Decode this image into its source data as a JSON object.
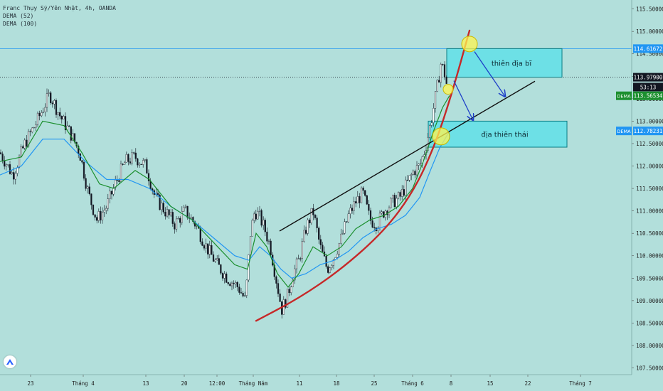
{
  "header": {
    "symbol_line": "Franc Thụy Sỹ/Yên Nhật, 4h, OANDA",
    "dema1": "DEMA (52)",
    "dema2": "DEMA (100)"
  },
  "chart_data": {
    "type": "candlestick",
    "ylim": [
      107.35,
      115.7
    ],
    "y_ticks": [
      "115.50000",
      "115.00000",
      "114.50000",
      "114.00000",
      "113.50000",
      "113.00000",
      "112.50000",
      "112.00000",
      "111.50000",
      "111.00000",
      "110.50000",
      "110.00000",
      "109.50000",
      "109.00000",
      "108.50000",
      "108.00000",
      "107.50000"
    ],
    "x_ticks": [
      "23",
      "Tháng 4",
      "13",
      "20",
      "12:00",
      "Tháng Năm",
      "11",
      "18",
      "25",
      "Tháng 6",
      "8",
      "15",
      "22",
      "Tháng 7"
    ],
    "price_labels": [
      {
        "text": "114.61672",
        "value": 114.61672,
        "color": "#2196f3"
      },
      {
        "text": "113.97900",
        "value": 113.979,
        "color": "#131722"
      },
      {
        "text": "53:13",
        "value": 113.76,
        "color": "#131722"
      },
      {
        "text": "113.56534",
        "value": 113.56534,
        "color": "#1b8f2e",
        "tag": "DEMA"
      },
      {
        "text": "112.78231",
        "value": 112.78231,
        "color": "#2196f3",
        "tag": "DEMA"
      }
    ],
    "hlines": [
      {
        "value": 114.61672,
        "color": "#2196f3",
        "style": "solid"
      },
      {
        "value": 113.979,
        "color": "#131722",
        "style": "dotted"
      }
    ],
    "candle_path": [
      [
        0,
        112.3
      ],
      [
        18,
        111.8
      ],
      [
        35,
        112.5
      ],
      [
        52,
        113.0
      ],
      [
        70,
        113.6
      ],
      [
        85,
        113.1
      ],
      [
        100,
        112.7
      ],
      [
        112,
        112.3
      ],
      [
        124,
        111.4
      ],
      [
        136,
        110.8
      ],
      [
        150,
        111.1
      ],
      [
        162,
        111.6
      ],
      [
        176,
        112.1
      ],
      [
        190,
        112.2
      ],
      [
        205,
        112.0
      ],
      [
        218,
        111.3
      ],
      [
        232,
        111.0
      ],
      [
        246,
        110.7
      ],
      [
        260,
        111.0
      ],
      [
        275,
        110.7
      ],
      [
        290,
        110.2
      ],
      [
        305,
        109.8
      ],
      [
        320,
        109.5
      ],
      [
        335,
        109.3
      ],
      [
        345,
        109.0
      ],
      [
        352,
        110.5
      ],
      [
        358,
        111.0
      ],
      [
        364,
        110.9
      ],
      [
        372,
        110.6
      ],
      [
        380,
        110.2
      ],
      [
        388,
        109.5
      ],
      [
        396,
        108.8
      ],
      [
        404,
        109.1
      ],
      [
        412,
        109.6
      ],
      [
        420,
        109.9
      ],
      [
        430,
        110.6
      ],
      [
        440,
        111.0
      ],
      [
        450,
        110.2
      ],
      [
        460,
        109.7
      ],
      [
        470,
        110.0
      ],
      [
        480,
        110.4
      ],
      [
        490,
        110.9
      ],
      [
        500,
        111.2
      ],
      [
        510,
        111.4
      ],
      [
        520,
        110.8
      ],
      [
        530,
        110.7
      ],
      [
        540,
        111.0
      ],
      [
        552,
        111.2
      ],
      [
        562,
        111.3
      ],
      [
        572,
        111.6
      ],
      [
        582,
        111.9
      ],
      [
        590,
        112.0
      ],
      [
        598,
        112.4
      ],
      [
        606,
        113.0
      ],
      [
        614,
        113.7
      ],
      [
        620,
        114.3
      ],
      [
        626,
        114.0
      ],
      [
        630,
        113.6
      ]
    ],
    "dema52": [
      [
        0,
        112.1
      ],
      [
        30,
        112.2
      ],
      [
        60,
        113.0
      ],
      [
        90,
        112.9
      ],
      [
        115,
        112.3
      ],
      [
        140,
        111.6
      ],
      [
        160,
        111.5
      ],
      [
        190,
        111.9
      ],
      [
        210,
        111.7
      ],
      [
        240,
        111.1
      ],
      [
        270,
        110.8
      ],
      [
        300,
        110.3
      ],
      [
        330,
        109.8
      ],
      [
        348,
        109.7
      ],
      [
        360,
        110.5
      ],
      [
        375,
        110.2
      ],
      [
        390,
        109.6
      ],
      [
        405,
        109.3
      ],
      [
        420,
        109.6
      ],
      [
        440,
        110.2
      ],
      [
        460,
        110.0
      ],
      [
        480,
        110.2
      ],
      [
        500,
        110.6
      ],
      [
        520,
        110.8
      ],
      [
        540,
        110.9
      ],
      [
        560,
        111.1
      ],
      [
        580,
        111.5
      ],
      [
        595,
        112.1
      ],
      [
        610,
        112.8
      ],
      [
        622,
        113.3
      ],
      [
        632,
        113.57
      ]
    ],
    "dema100": [
      [
        0,
        111.8
      ],
      [
        30,
        112.0
      ],
      [
        60,
        112.6
      ],
      [
        90,
        112.6
      ],
      [
        120,
        112.1
      ],
      [
        150,
        111.7
      ],
      [
        180,
        111.7
      ],
      [
        210,
        111.5
      ],
      [
        240,
        111.1
      ],
      [
        270,
        110.8
      ],
      [
        300,
        110.4
      ],
      [
        330,
        110.0
      ],
      [
        350,
        109.9
      ],
      [
        365,
        110.2
      ],
      [
        380,
        110.0
      ],
      [
        395,
        109.7
      ],
      [
        410,
        109.5
      ],
      [
        430,
        109.6
      ],
      [
        450,
        109.8
      ],
      [
        470,
        109.9
      ],
      [
        490,
        110.1
      ],
      [
        510,
        110.4
      ],
      [
        530,
        110.6
      ],
      [
        550,
        110.7
      ],
      [
        570,
        110.9
      ],
      [
        590,
        111.3
      ],
      [
        605,
        111.9
      ],
      [
        618,
        112.4
      ],
      [
        632,
        112.78
      ]
    ],
    "trendline": {
      "x1": 393,
      "y1": 110.55,
      "x2": 752,
      "y2": 113.89
    },
    "curve": [
      [
        360,
        108.55
      ],
      [
        420,
        109.05
      ],
      [
        480,
        109.7
      ],
      [
        540,
        110.55
      ],
      [
        580,
        111.4
      ],
      [
        610,
        112.4
      ],
      [
        635,
        113.6
      ],
      [
        660,
        115.02
      ]
    ],
    "zones": [
      {
        "label": "thiên địa bĩ",
        "x1": 628,
        "x2": 790,
        "top": 114.61672,
        "bottom": 113.979
      },
      {
        "label": "địa thiên thái",
        "x1": 602,
        "x2": 797,
        "top": 113.0,
        "bottom": 112.42
      }
    ],
    "circles": [
      {
        "x": 660,
        "y": 114.72,
        "r": 11
      },
      {
        "x": 630,
        "y": 113.71,
        "r": 7
      },
      {
        "x": 620,
        "y": 112.66,
        "r": 12
      }
    ],
    "arrows": [
      {
        "x1": 667,
        "y1": 114.55,
        "x2": 710,
        "y2": 113.55
      },
      {
        "x1": 638,
        "y1": 113.9,
        "x2": 665,
        "y2": 113.02
      }
    ]
  }
}
